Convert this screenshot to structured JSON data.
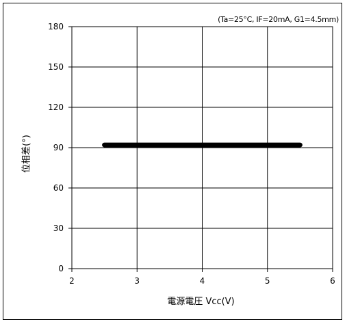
{
  "chart_data": {
    "type": "line",
    "condition_note": "(Ta=25°C, IF=20mA, G1=4.5mm)",
    "xlabel": "電源電圧 Vcc(V)",
    "ylabel": "位相差(°)",
    "xlim": [
      2,
      6
    ],
    "ylim": [
      0,
      180
    ],
    "x_ticks": [
      "2",
      "3",
      "4",
      "5",
      "6"
    ],
    "y_ticks": [
      "0",
      "30",
      "60",
      "90",
      "120",
      "150",
      "180"
    ],
    "grid": true,
    "series": [
      {
        "x": [
          2.5,
          5.5
        ],
        "y": [
          92,
          92
        ],
        "color": "#000000"
      }
    ]
  }
}
